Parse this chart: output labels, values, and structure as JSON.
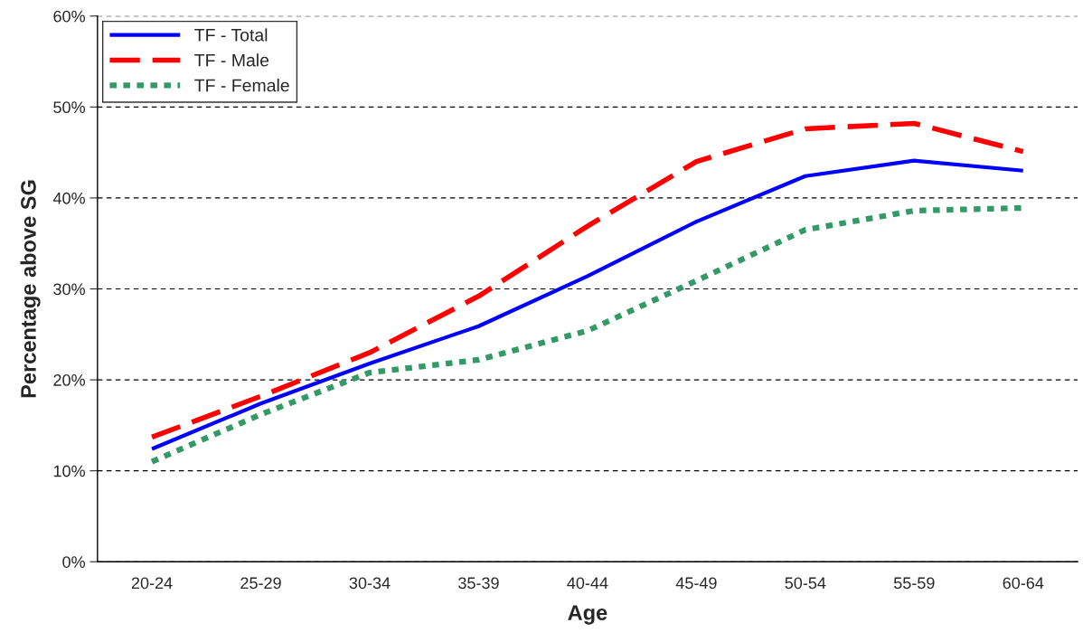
{
  "chart_data": {
    "type": "line",
    "xlabel": "Age",
    "ylabel": "Percentage above SG",
    "categories": [
      "20-24",
      "25-29",
      "30-34",
      "35-39",
      "40-44",
      "45-49",
      "50-54",
      "55-59",
      "60-64"
    ],
    "series": [
      {
        "name": "TF - Total",
        "color": "#0000ff",
        "line_style": "solid",
        "values": [
          12.4,
          17.4,
          21.8,
          25.9,
          31.4,
          37.4,
          42.4,
          44.1,
          43.0
        ]
      },
      {
        "name": "TF - Male",
        "color": "#ff0000",
        "line_style": "dashed",
        "values": [
          13.7,
          18.2,
          23.0,
          29.2,
          36.9,
          44.0,
          47.6,
          48.2,
          45.1
        ]
      },
      {
        "name": "TF - Female",
        "color": "#339966",
        "line_style": "dotted",
        "values": [
          11.0,
          16.2,
          20.8,
          22.2,
          25.4,
          30.9,
          36.5,
          38.6,
          38.9
        ]
      }
    ],
    "ylim": [
      0,
      60
    ],
    "yticks": [
      {
        "value": 0,
        "label": "0%"
      },
      {
        "value": 10,
        "label": "10%"
      },
      {
        "value": 20,
        "label": "20%"
      },
      {
        "value": 30,
        "label": "30%"
      },
      {
        "value": 40,
        "label": "40%"
      },
      {
        "value": 50,
        "label": "50%"
      },
      {
        "value": 60,
        "label": "60%"
      }
    ],
    "grid": "y",
    "legend": "top left",
    "marker": "none"
  }
}
